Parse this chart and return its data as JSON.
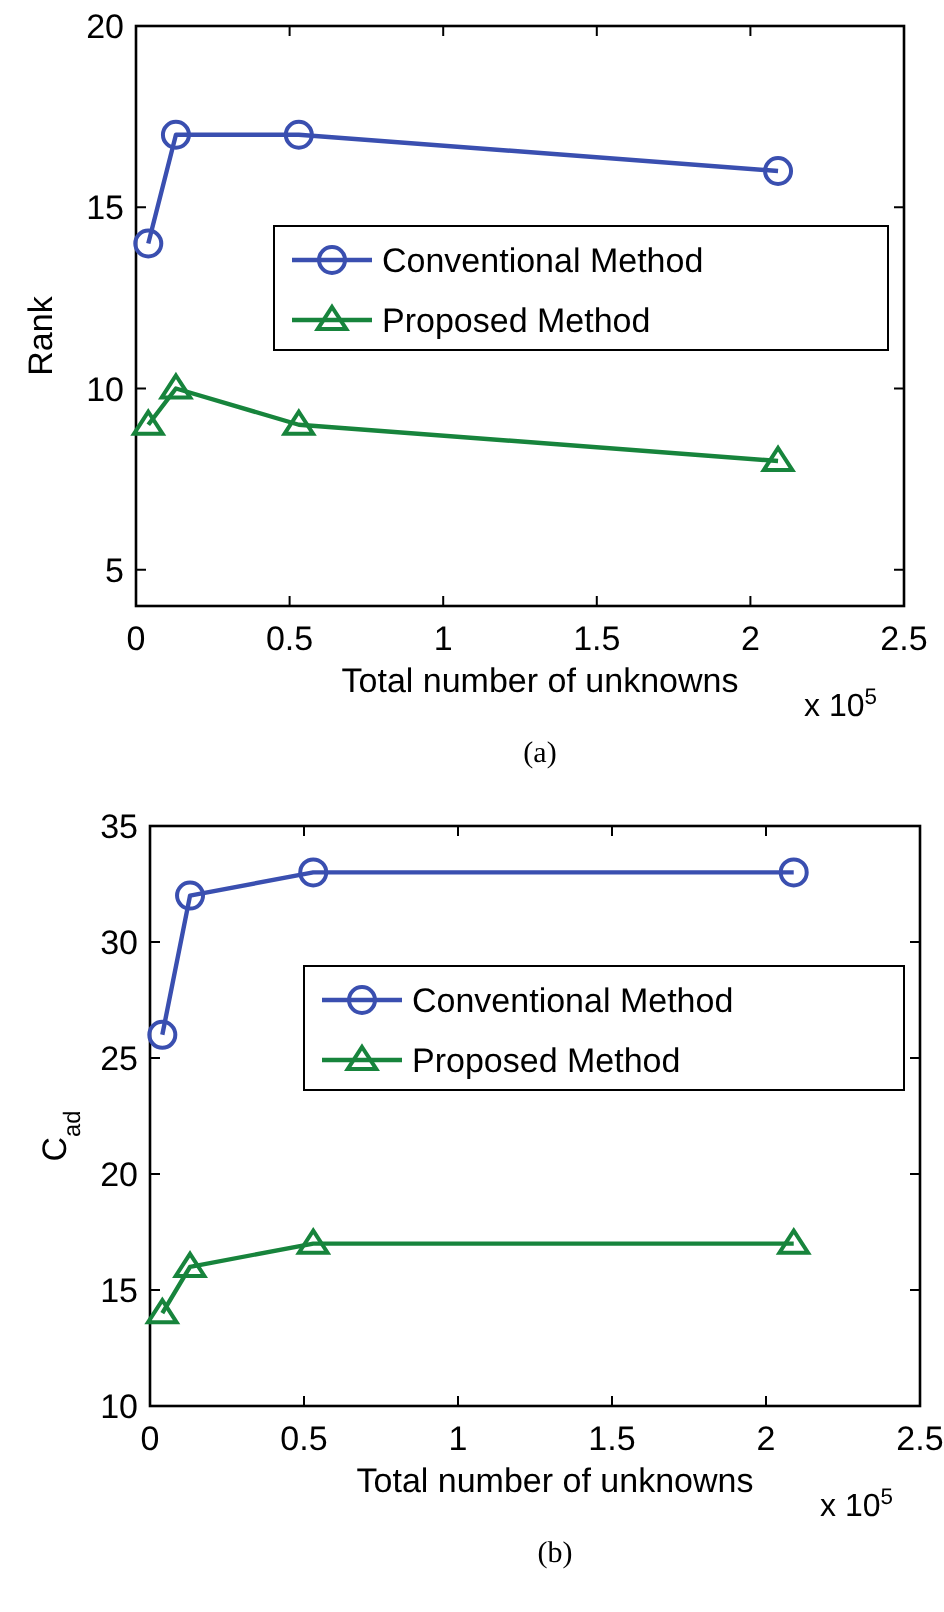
{
  "chart_data": [
    {
      "type": "line",
      "xlabel": "Total number of unknowns",
      "ylabel": "Rank",
      "x": [
        0.04,
        0.13,
        0.53,
        2.09
      ],
      "xlim": [
        0,
        2.5
      ],
      "xticks": [
        0,
        0.5,
        1,
        1.5,
        2,
        2.5
      ],
      "ylim": [
        4,
        20
      ],
      "yticks": [
        5,
        10,
        15,
        20
      ],
      "grid": false,
      "legend": "right",
      "annotations": [
        "x 10$^{5}$",
        "(a)"
      ],
      "series": [
        {
          "name": "Conventional Method",
          "color": "#3a4fb0",
          "marker": "circle",
          "values": [
            14,
            17,
            17,
            16
          ]
        },
        {
          "name": "Proposed Method",
          "color": "#17843c",
          "marker": "triangle",
          "values": [
            9,
            10,
            9,
            8
          ]
        }
      ]
    },
    {
      "type": "line",
      "xlabel": "Total number of unknowns",
      "ylabel": "C$_{ad}$",
      "x": [
        0.04,
        0.13,
        0.53,
        2.09
      ],
      "xlim": [
        0,
        2.5
      ],
      "xticks": [
        0,
        0.5,
        1,
        1.5,
        2,
        2.5
      ],
      "ylim": [
        10,
        35
      ],
      "yticks": [
        10,
        15,
        20,
        25,
        30,
        35
      ],
      "grid": false,
      "legend": "top right",
      "annotations": [
        "x 10$^{5}$",
        "(b)"
      ],
      "series": [
        {
          "name": "Conventional Method",
          "color": "#3a4fb0",
          "marker": "circle",
          "values": [
            26,
            32,
            33,
            33
          ]
        },
        {
          "name": "Proposed Method",
          "color": "#17843c",
          "marker": "triangle",
          "values": [
            14,
            16,
            17,
            17
          ]
        }
      ]
    }
  ]
}
